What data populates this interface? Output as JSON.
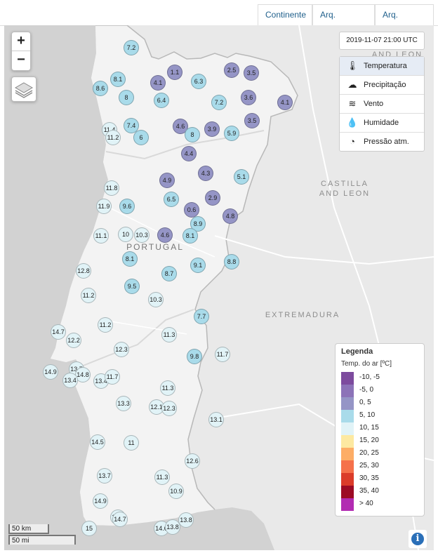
{
  "tabs": [
    {
      "label": "Continente",
      "active": true
    },
    {
      "label": "Arq. Madeira",
      "active": false
    },
    {
      "label": "Arq. Açores",
      "active": false
    }
  ],
  "zoom": {
    "in": "+",
    "out": "−"
  },
  "timestamp": "2019-11-07 21:00 UTC",
  "variables": [
    {
      "label": "Temperatura",
      "icon": "thermometer-icon",
      "active": true
    },
    {
      "label": "Precipitação",
      "icon": "rain-cloud-icon",
      "active": false
    },
    {
      "label": "Vento",
      "icon": "wind-icon",
      "active": false
    },
    {
      "label": "Humidade",
      "icon": "humidity-icon",
      "active": false
    },
    {
      "label": "Pressão atm.",
      "icon": "barometer-icon",
      "active": false
    }
  ],
  "map_labels": {
    "castilla": "CASTILLA\nAND LEON",
    "leon": "AND LEON",
    "portugal": "PORTUGAL",
    "extremadura": "EXTREMADURA"
  },
  "legend": {
    "title": "Legenda",
    "subtitle": "Temp. do ar [ºC]",
    "classes": [
      {
        "label": "-10, -5",
        "color": "#7d4b9e"
      },
      {
        "label": "-5, 0",
        "color": "#8c73b8"
      },
      {
        "label": "0, 5",
        "color": "#9595c6"
      },
      {
        "label": "5, 10",
        "color": "#a9dbea"
      },
      {
        "label": "10, 15",
        "color": "#e1f3f7"
      },
      {
        "label": "15, 20",
        "color": "#fde9a1"
      },
      {
        "label": "20, 25",
        "color": "#fdad66"
      },
      {
        "label": "25, 30",
        "color": "#f5714b"
      },
      {
        "label": "30, 35",
        "color": "#db3c2a"
      },
      {
        "label": "35, 40",
        "color": "#9c0b25"
      },
      {
        "label": "> 40",
        "color": "#b22cb2"
      }
    ]
  },
  "scale": {
    "km": "50 km",
    "mi": "50 mi"
  },
  "stations": [
    {
      "v": "7.2"
    },
    {
      "v": "1.1"
    },
    {
      "v": "4.1"
    },
    {
      "v": "6.3"
    },
    {
      "v": "2.5"
    },
    {
      "v": "3.5"
    },
    {
      "v": "8.1"
    },
    {
      "v": "8.6"
    },
    {
      "v": "8"
    },
    {
      "v": "6.4"
    },
    {
      "v": "3.6"
    },
    {
      "v": "7.2"
    },
    {
      "v": "4.1"
    },
    {
      "v": "7.4"
    },
    {
      "v": "11.4"
    },
    {
      "v": "11.2"
    },
    {
      "v": "6"
    },
    {
      "v": "4.6"
    },
    {
      "v": "8"
    },
    {
      "v": "3.9"
    },
    {
      "v": "5.9"
    },
    {
      "v": "3.5"
    },
    {
      "v": "4.4"
    },
    {
      "v": "4.3"
    },
    {
      "v": "5.1"
    },
    {
      "v": "4.9"
    },
    {
      "v": "11.8"
    },
    {
      "v": "6.5"
    },
    {
      "v": "2.9"
    },
    {
      "v": "11.9"
    },
    {
      "v": "9.6"
    },
    {
      "v": "0.6"
    },
    {
      "v": "4.8"
    },
    {
      "v": "8.9"
    },
    {
      "v": "11.1"
    },
    {
      "v": "10"
    },
    {
      "v": "10.3"
    },
    {
      "v": "4.6"
    },
    {
      "v": "8.1"
    },
    {
      "v": "8.1"
    },
    {
      "v": "9.1"
    },
    {
      "v": "8.8"
    },
    {
      "v": "12.8"
    },
    {
      "v": "8.7"
    },
    {
      "v": "9.5"
    },
    {
      "v": "11.2"
    },
    {
      "v": "10.3"
    },
    {
      "v": "7.7"
    },
    {
      "v": "11.2"
    },
    {
      "v": "14.7"
    },
    {
      "v": "12.2"
    },
    {
      "v": "11.3"
    },
    {
      "v": "12.3"
    },
    {
      "v": "9.8"
    },
    {
      "v": "11.7"
    },
    {
      "v": "14.9"
    },
    {
      "v": "13.7"
    },
    {
      "v": "14.8"
    },
    {
      "v": "13.4"
    },
    {
      "v": "13.4"
    },
    {
      "v": "11.7"
    },
    {
      "v": "11.3"
    },
    {
      "v": "12.1"
    },
    {
      "v": "12.3"
    },
    {
      "v": "13.3"
    },
    {
      "v": "13.1"
    },
    {
      "v": "14.5"
    },
    {
      "v": "11"
    },
    {
      "v": "12.6"
    },
    {
      "v": "13.7"
    },
    {
      "v": "11.3"
    },
    {
      "v": "10.9"
    },
    {
      "v": "14.9"
    },
    {
      "v": "14.7"
    },
    {
      "v": "13.8"
    },
    {
      "v": "14.7"
    },
    {
      "v": "15"
    },
    {
      "v": "14.6"
    },
    {
      "v": "13.8"
    }
  ]
}
